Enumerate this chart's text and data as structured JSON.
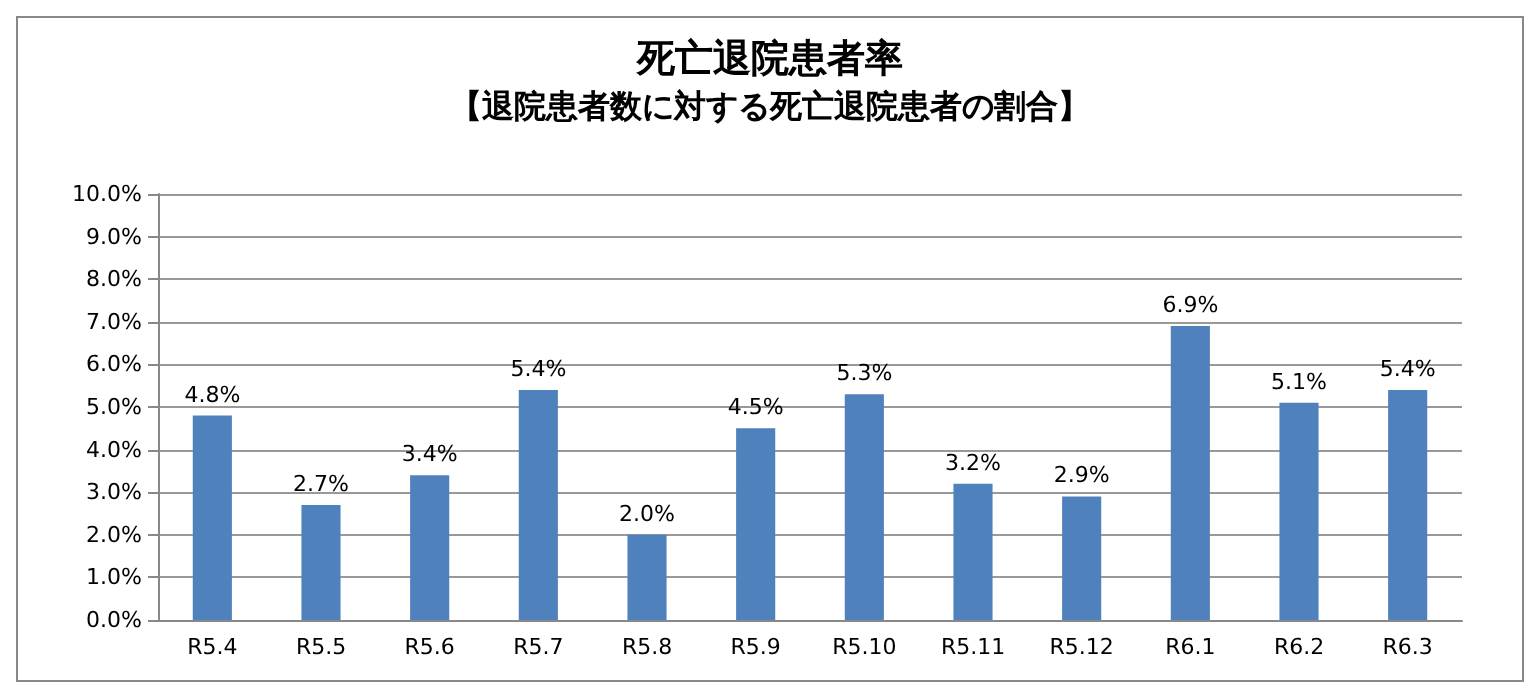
{
  "chart_data": {
    "type": "bar",
    "title": "死亡退院患者率",
    "subtitle": "【退院患者数に対する死亡退院患者の割合】",
    "categories": [
      "R5.4",
      "R5.5",
      "R5.6",
      "R5.7",
      "R5.8",
      "R5.9",
      "R5.10",
      "R5.11",
      "R5.12",
      "R6.1",
      "R6.2",
      "R6.3"
    ],
    "values": [
      4.8,
      2.7,
      3.4,
      5.4,
      2.0,
      4.5,
      5.3,
      3.2,
      2.9,
      6.9,
      5.1,
      5.4
    ],
    "value_labels": [
      "4.8%",
      "2.7%",
      "3.4%",
      "5.4%",
      "2.0%",
      "4.5%",
      "5.3%",
      "3.2%",
      "2.9%",
      "6.9%",
      "5.1%",
      "5.4%"
    ],
    "color": "#4f81bd",
    "ylim": [
      0,
      10
    ],
    "yticks": [
      {
        "value": 0,
        "label": "0.0%"
      },
      {
        "value": 1,
        "label": "1.0%"
      },
      {
        "value": 2,
        "label": "2.0%"
      },
      {
        "value": 3,
        "label": "3.0%"
      },
      {
        "value": 4,
        "label": "4.0%"
      },
      {
        "value": 5,
        "label": "5.0%"
      },
      {
        "value": 6,
        "label": "6.0%"
      },
      {
        "value": 7,
        "label": "7.0%"
      },
      {
        "value": 8,
        "label": "8.0%"
      },
      {
        "value": 9,
        "label": "9.0%"
      },
      {
        "value": 10,
        "label": "10.0%"
      }
    ],
    "grid": "y"
  }
}
